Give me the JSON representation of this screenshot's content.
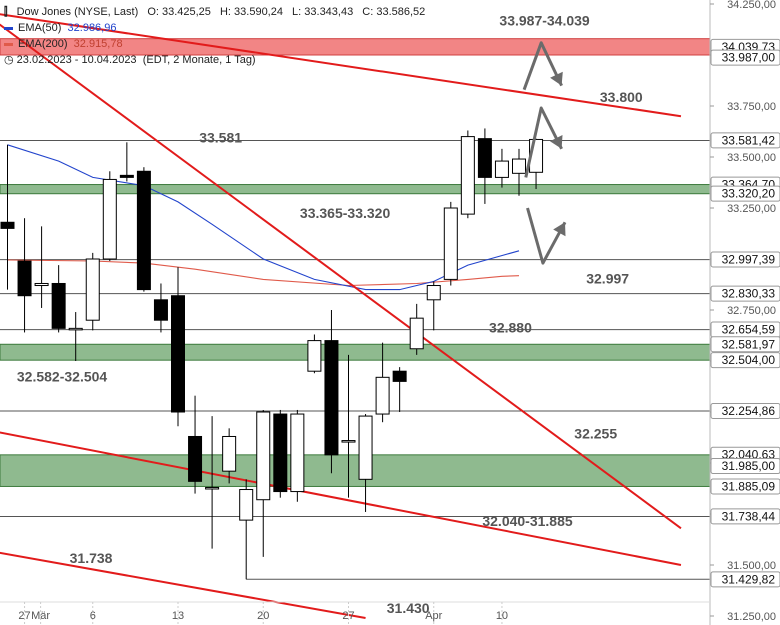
{
  "legend": {
    "symbol": "Dow Jones (NYSE, Last)",
    "open": "O: 33.425,25",
    "high": "H: 33.590,24",
    "low": "L: 33.343,43",
    "close": "C: 33.586,52",
    "ema50_label": "EMA(50)",
    "ema50_value": "32.986,96",
    "ema200_label": "EMA(200)",
    "ema200_value": "32.915,78",
    "period": "23.02.2023 - 10.04.2023",
    "period_info": "(EDT, 2 Monate, 1 Tag)"
  },
  "colors": {
    "ema50": "#2244cc",
    "ema200": "#e05a4a",
    "trend": "#e21b1b",
    "zone": "#6aa36a",
    "resistance_band": "#f07070",
    "candle_down": "#000000",
    "candle_up": "#ffffff",
    "arrow": "#6b6b6b"
  },
  "chart_data": {
    "type": "candlestick",
    "ylim": [
      31250,
      34250
    ],
    "yticks": [
      {
        "v": 34250,
        "label": "34.250,00"
      },
      {
        "v": 34000,
        "label": "34.000,00"
      },
      {
        "v": 33750,
        "label": "33.750,00"
      },
      {
        "v": 33500,
        "label": "33.500,00"
      },
      {
        "v": 33250,
        "label": "33.250,00"
      },
      {
        "v": 33000,
        "label": "33.000,00"
      },
      {
        "v": 32750,
        "label": "32.750,00"
      },
      {
        "v": 32500,
        "label": "32.500,00"
      },
      {
        "v": 32250,
        "label": "32.250,00"
      },
      {
        "v": 32000,
        "label": "32.000,00"
      },
      {
        "v": 31750,
        "label": "31.750,00"
      },
      {
        "v": 31500,
        "label": "31.500,00"
      },
      {
        "v": 31250,
        "label": "31.250,00"
      }
    ],
    "xticks": [
      {
        "i": 1,
        "label": "27"
      },
      {
        "i": 2,
        "label": "Mär"
      },
      {
        "i": 5,
        "label": "6"
      },
      {
        "i": 10,
        "label": "13"
      },
      {
        "i": 15,
        "label": "20"
      },
      {
        "i": 20,
        "label": "27"
      },
      {
        "i": 25,
        "label": "Apr"
      },
      {
        "i": 29,
        "label": "10"
      }
    ],
    "candles": [
      {
        "date": "23.02",
        "o": 33180,
        "h": 33560,
        "l": 32850,
        "c": 33150
      },
      {
        "date": "24.02",
        "o": 32990,
        "h": 33200,
        "l": 32640,
        "c": 32820
      },
      {
        "date": "27.02",
        "o": 32870,
        "h": 33160,
        "l": 32760,
        "c": 32880
      },
      {
        "date": "28.02",
        "o": 32880,
        "h": 32970,
        "l": 32640,
        "c": 32660
      },
      {
        "date": "01.03",
        "o": 32660,
        "h": 32740,
        "l": 32500,
        "c": 32660
      },
      {
        "date": "02.03",
        "o": 32700,
        "h": 33030,
        "l": 32650,
        "c": 33000
      },
      {
        "date": "03.03",
        "o": 33000,
        "h": 33430,
        "l": 32990,
        "c": 33390
      },
      {
        "date": "06.03",
        "o": 33410,
        "h": 33572,
        "l": 33380,
        "c": 33400
      },
      {
        "date": "07.03",
        "o": 33430,
        "h": 33450,
        "l": 32840,
        "c": 32850
      },
      {
        "date": "08.03",
        "o": 32800,
        "h": 32880,
        "l": 32640,
        "c": 32700
      },
      {
        "date": "09.03",
        "o": 32820,
        "h": 32960,
        "l": 32180,
        "c": 32250
      },
      {
        "date": "10.03",
        "o": 32130,
        "h": 32330,
        "l": 31850,
        "c": 31910
      },
      {
        "date": "13.03",
        "o": 31880,
        "h": 32230,
        "l": 31580,
        "c": 31880
      },
      {
        "date": "14.03",
        "o": 31960,
        "h": 32170,
        "l": 31900,
        "c": 32130
      },
      {
        "date": "15.03",
        "o": 31720,
        "h": 31920,
        "l": 31430,
        "c": 31870
      },
      {
        "date": "16.03",
        "o": 31820,
        "h": 32260,
        "l": 31540,
        "c": 32250
      },
      {
        "date": "17.03",
        "o": 32240,
        "h": 32260,
        "l": 31830,
        "c": 31860
      },
      {
        "date": "20.03",
        "o": 31860,
        "h": 32260,
        "l": 31810,
        "c": 32240
      },
      {
        "date": "21.03",
        "o": 32450,
        "h": 32630,
        "l": 32440,
        "c": 32600
      },
      {
        "date": "22.03",
        "o": 32600,
        "h": 32750,
        "l": 31950,
        "c": 32040
      },
      {
        "date": "23.03",
        "o": 32110,
        "h": 32530,
        "l": 31830,
        "c": 32110
      },
      {
        "date": "24.03",
        "o": 31920,
        "h": 32240,
        "l": 31760,
        "c": 32230
      },
      {
        "date": "27.03",
        "o": 32240,
        "h": 32590,
        "l": 32200,
        "c": 32420
      },
      {
        "date": "28.03",
        "o": 32450,
        "h": 32470,
        "l": 32250,
        "c": 32400
      },
      {
        "date": "29.03",
        "o": 32560,
        "h": 32780,
        "l": 32530,
        "c": 32710
      },
      {
        "date": "30.03",
        "o": 32800,
        "h": 32890,
        "l": 32650,
        "c": 32870
      },
      {
        "date": "31.03",
        "o": 32900,
        "h": 33280,
        "l": 32870,
        "c": 33250
      },
      {
        "date": "03.04",
        "o": 33220,
        "h": 33630,
        "l": 33200,
        "c": 33600
      },
      {
        "date": "04.04",
        "o": 33590,
        "h": 33640,
        "l": 33270,
        "c": 33400
      },
      {
        "date": "05.04",
        "o": 33400,
        "h": 33540,
        "l": 33350,
        "c": 33480
      },
      {
        "date": "06.04",
        "o": 33420,
        "h": 33540,
        "l": 33310,
        "c": 33490
      },
      {
        "date": "10.04",
        "o": 33425,
        "h": 33590,
        "l": 33343,
        "c": 33586
      }
    ],
    "ema50": [
      [
        0,
        33560
      ],
      [
        3,
        33480
      ],
      [
        5,
        33400
      ],
      [
        8,
        33360
      ],
      [
        10,
        33280
      ],
      [
        12,
        33170
      ],
      [
        15,
        33000
      ],
      [
        18,
        32900
      ],
      [
        21,
        32850
      ],
      [
        23,
        32850
      ],
      [
        25,
        32890
      ],
      [
        27,
        32970
      ],
      [
        30,
        33040
      ]
    ],
    "ema200": [
      [
        0,
        32995
      ],
      [
        5,
        32990
      ],
      [
        8,
        32980
      ],
      [
        11,
        32950
      ],
      [
        15,
        32900
      ],
      [
        20,
        32870
      ],
      [
        24,
        32880
      ],
      [
        27,
        32900
      ],
      [
        29,
        32915
      ],
      [
        30,
        32918
      ]
    ],
    "trendlines": [
      {
        "from": [
          0,
          34200
        ],
        "to": [
          39.5,
          33700
        ]
      },
      {
        "from": [
          0,
          34150
        ],
        "to": [
          39.5,
          31680
        ]
      },
      {
        "from": [
          0,
          32150
        ],
        "to": [
          39.5,
          31500
        ]
      },
      {
        "from": [
          0,
          31560
        ],
        "to": [
          21,
          31240
        ]
      }
    ],
    "zones": [
      {
        "from": 34000,
        "to": 34080,
        "kind": "resistance"
      },
      {
        "from": 33320,
        "to": 33365,
        "kind": "support"
      },
      {
        "from": 32504,
        "to": 32582,
        "kind": "support"
      },
      {
        "from": 31885,
        "to": 32040,
        "kind": "support"
      }
    ],
    "hlines": [
      {
        "v": 33581,
        "from": 0
      },
      {
        "v": 32997,
        "from": 0
      },
      {
        "v": 32830,
        "from": 0
      },
      {
        "v": 32654,
        "from": 0
      },
      {
        "v": 32255,
        "from": 0
      },
      {
        "v": 31738,
        "from": 0
      },
      {
        "v": 31430,
        "from": 14
      }
    ],
    "price_tags": [
      {
        "v": 34039.73,
        "label": "34.039,73"
      },
      {
        "v": 33987,
        "label": "33.987,00"
      },
      {
        "v": 33581.42,
        "label": "33.581,42"
      },
      {
        "v": 33364.7,
        "label": "33.364,70"
      },
      {
        "v": 33320.2,
        "label": "33.320,20"
      },
      {
        "v": 32997.39,
        "label": "32.997,39"
      },
      {
        "v": 32830.33,
        "label": "32.830,33"
      },
      {
        "v": 32654.59,
        "label": "32.654,59"
      },
      {
        "v": 32581.97,
        "label": "32.581,97"
      },
      {
        "v": 32504.0,
        "label": "32.504,00"
      },
      {
        "v": 32254.86,
        "label": "32.254,86"
      },
      {
        "v": 32040.63,
        "label": "32.040,63"
      },
      {
        "v": 31985,
        "label": "31.985,00"
      },
      {
        "v": 31885.09,
        "label": "31.885,09"
      },
      {
        "v": 31738.44,
        "label": "31.738,44"
      },
      {
        "v": 31429.82,
        "label": "31.429,82"
      }
    ],
    "annotations": [
      {
        "text": "33.987-34.039",
        "i": 31.5,
        "v": 34145
      },
      {
        "text": "33.800",
        "i": 36,
        "v": 33770
      },
      {
        "text": "33.581",
        "i": 12.5,
        "v": 33570
      },
      {
        "text": "33.365-33.320",
        "i": 19.8,
        "v": 33200
      },
      {
        "text": "32.997",
        "i": 35.2,
        "v": 32880
      },
      {
        "text": "32.880",
        "i": 29.5,
        "v": 32640
      },
      {
        "text": "32.582-32.504",
        "i": 3.2,
        "v": 32400
      },
      {
        "text": "32.255",
        "i": 34.5,
        "v": 32120
      },
      {
        "text": "32.040-31.885",
        "i": 30.5,
        "v": 31690
      },
      {
        "text": "31.738",
        "i": 4.9,
        "v": 31510
      },
      {
        "text": "31.430",
        "i": 23.5,
        "v": 31265
      }
    ],
    "forecast_arrows": [
      {
        "points": [
          [
            30.3,
            33830
          ],
          [
            31.3,
            34060
          ],
          [
            32.5,
            33850
          ]
        ]
      },
      {
        "points": [
          [
            30.4,
            33400
          ],
          [
            31.3,
            33740
          ],
          [
            32.5,
            33540
          ]
        ]
      },
      {
        "points": [
          [
            30.5,
            33250
          ],
          [
            31.4,
            32980
          ],
          [
            32.7,
            33180
          ]
        ]
      }
    ]
  }
}
